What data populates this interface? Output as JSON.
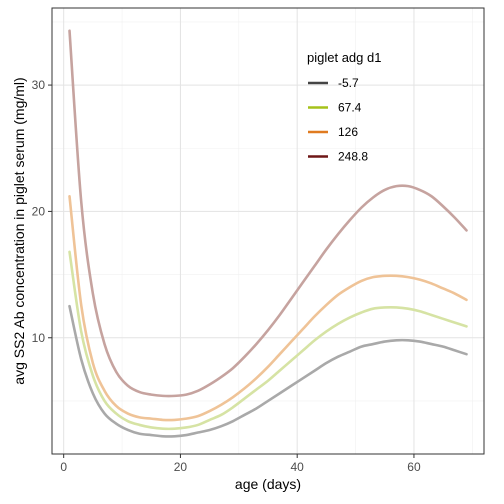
{
  "chart_data": {
    "type": "line",
    "title": "",
    "xlabel": "age (days)",
    "ylabel": "avg SS2 Ab concentration in piglet serum (mg/ml)",
    "xlim": [
      -2,
      72
    ],
    "ylim": [
      0.8,
      36.1
    ],
    "xticks": [
      0,
      20,
      40,
      60
    ],
    "yticks": [
      10,
      20,
      30
    ],
    "grid": true,
    "legend": {
      "title": "piglet adg d1",
      "position": "top-right-inside"
    },
    "x": [
      1,
      3,
      5,
      7,
      9,
      11,
      13,
      15,
      17,
      19,
      21,
      23,
      25,
      27,
      29,
      31,
      33,
      35,
      37,
      39,
      41,
      43,
      45,
      47,
      49,
      51,
      53,
      55,
      57,
      59,
      61,
      63,
      65,
      67,
      69
    ],
    "series": [
      {
        "name": "-5.7",
        "legend_color": "#444444",
        "line_color": "#a9a9a9",
        "values": [
          12.5,
          8.3,
          5.6,
          4.0,
          3.2,
          2.7,
          2.4,
          2.3,
          2.2,
          2.2,
          2.3,
          2.5,
          2.7,
          3.0,
          3.4,
          3.9,
          4.4,
          5.0,
          5.6,
          6.2,
          6.8,
          7.4,
          8.0,
          8.5,
          8.9,
          9.3,
          9.5,
          9.7,
          9.8,
          9.8,
          9.7,
          9.5,
          9.3,
          9.0,
          8.7
        ]
      },
      {
        "name": "67.4",
        "legend_color": "#a5c21a",
        "line_color": "#d6e3a4",
        "values": [
          16.8,
          10.5,
          7.0,
          5.0,
          4.0,
          3.4,
          3.1,
          2.9,
          2.8,
          2.8,
          2.9,
          3.1,
          3.5,
          3.9,
          4.5,
          5.2,
          5.9,
          6.6,
          7.4,
          8.2,
          9.0,
          9.8,
          10.5,
          11.1,
          11.6,
          12.0,
          12.3,
          12.4,
          12.4,
          12.3,
          12.1,
          11.8,
          11.5,
          11.2,
          10.9
        ]
      },
      {
        "name": "126",
        "legend_color": "#e07b20",
        "line_color": "#efc397",
        "values": [
          21.2,
          12.6,
          8.0,
          5.8,
          4.6,
          4.0,
          3.7,
          3.6,
          3.5,
          3.5,
          3.6,
          3.8,
          4.2,
          4.7,
          5.3,
          6.0,
          6.8,
          7.7,
          8.7,
          9.7,
          10.7,
          11.7,
          12.6,
          13.4,
          14.0,
          14.5,
          14.8,
          14.9,
          14.9,
          14.8,
          14.6,
          14.3,
          13.9,
          13.5,
          13.0
        ]
      },
      {
        "name": "248.8",
        "legend_color": "#6e1616",
        "line_color": "#c6a39f",
        "values": [
          34.3,
          20.8,
          13.5,
          9.5,
          7.3,
          6.2,
          5.7,
          5.5,
          5.4,
          5.4,
          5.5,
          5.8,
          6.3,
          6.9,
          7.6,
          8.5,
          9.5,
          10.6,
          11.8,
          13.1,
          14.4,
          15.7,
          17.0,
          18.2,
          19.3,
          20.3,
          21.1,
          21.7,
          22.0,
          22.0,
          21.7,
          21.2,
          20.4,
          19.5,
          18.5
        ]
      }
    ]
  }
}
